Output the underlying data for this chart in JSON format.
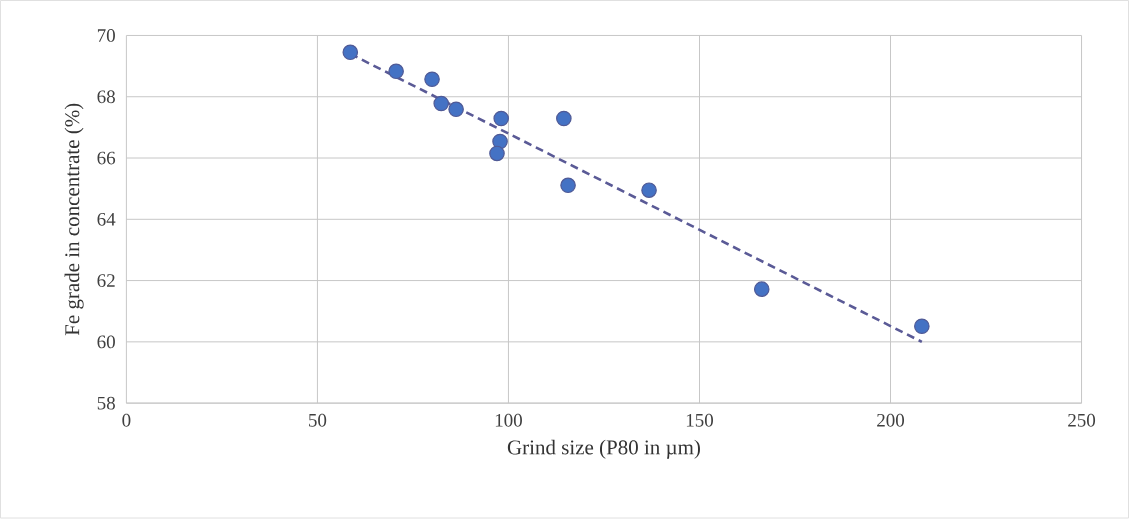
{
  "chart_data": {
    "type": "scatter",
    "xlabel": "Grind size (P80 in µm)",
    "ylabel": "Fe grade in concentrate (%)",
    "xlim": [
      0,
      250
    ],
    "xticks": [
      0,
      50,
      100,
      150,
      200,
      250
    ],
    "ylim": [
      58,
      70
    ],
    "yticks": [
      58,
      60,
      62,
      64,
      66,
      68,
      70
    ],
    "grid": true,
    "series": [
      {
        "marker": "circle",
        "color": "#4472c4",
        "x": [
          58.6,
          70.6,
          80.0,
          82.4,
          86.3,
          98.1,
          97.8,
          97.0,
          114.5,
          115.6,
          136.8,
          166.3,
          208.2
        ],
        "values": [
          69.45,
          68.83,
          68.57,
          67.78,
          67.59,
          67.29,
          66.54,
          66.15,
          67.29,
          65.11,
          64.95,
          61.72,
          60.51
        ]
      },
      {
        "type": "line",
        "color": "#5a5a96",
        "line_style": "dashed",
        "marker": "none",
        "x": [
          58.6,
          208.2
        ],
        "values": [
          69.4,
          60.0
        ]
      }
    ]
  }
}
